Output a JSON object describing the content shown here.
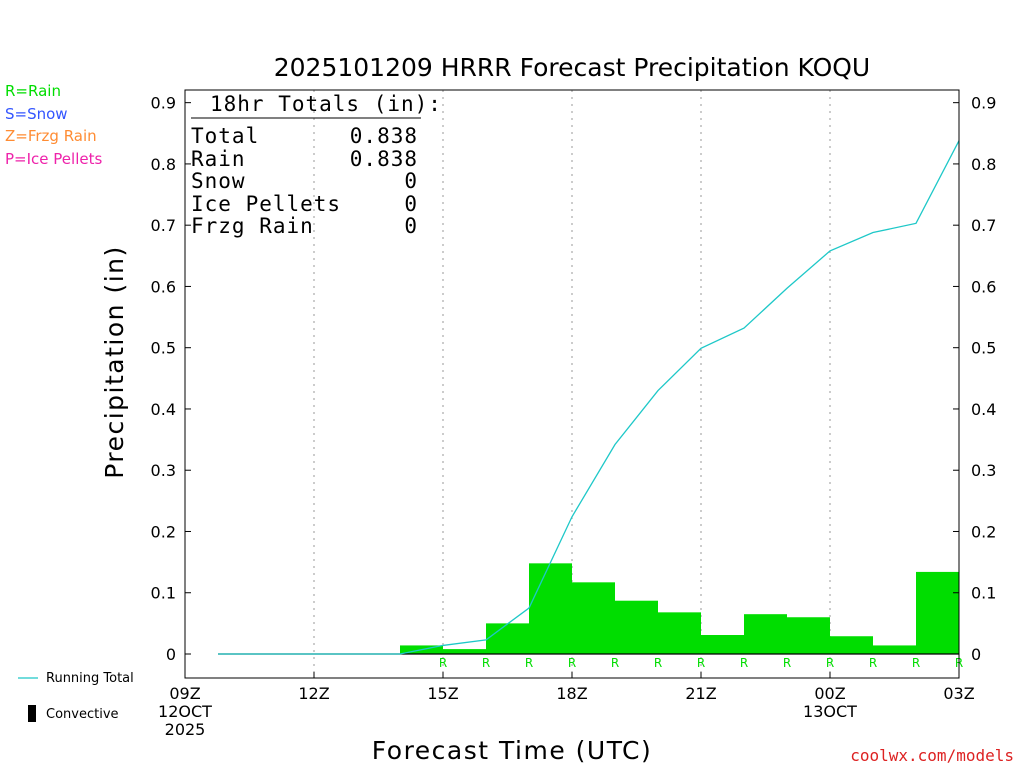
{
  "title": "2025101209 HRRR Forecast Precipitation KOQU",
  "legend_types": [
    {
      "label": "R=Rain",
      "color": "#00dd00"
    },
    {
      "label": "S=Snow",
      "color": "#3355ff"
    },
    {
      "label": "Z=Frzg Rain",
      "color": "#ff8c33"
    },
    {
      "label": "P=Ice Pellets",
      "color": "#ee22aa"
    }
  ],
  "totals": {
    "header": "18hr Totals (in):",
    "rows": [
      {
        "label": "Total",
        "value": "0.838"
      },
      {
        "label": "Rain",
        "value": "0.838"
      },
      {
        "label": "Snow",
        "value": "0"
      },
      {
        "label": "Ice Pellets",
        "value": "0"
      },
      {
        "label": "Frzg Rain",
        "value": "0"
      }
    ]
  },
  "bottom_legend": {
    "running_total": "Running Total",
    "convective": "Convective"
  },
  "credit": "coolwx.com/models",
  "colors": {
    "bars": "#00dd00",
    "line": "#1ec8c8",
    "rain_marker": "#00dd00",
    "credit": "#dd2222"
  },
  "chart_data": {
    "type": "bar",
    "title": "2025101209 HRRR Forecast Precipitation KOQU",
    "xlabel": "Forecast Time (UTC)",
    "ylabel": "Precipitation (in)",
    "ylim": [
      0,
      0.92
    ],
    "yticks": [
      0,
      0.1,
      0.2,
      0.3,
      0.4,
      0.5,
      0.6,
      0.7,
      0.8,
      0.9
    ],
    "ytick_labels": [
      "0",
      "0.1",
      "0.2",
      "0.3",
      "0.4",
      "0.5",
      "0.6",
      "0.7",
      "0.8",
      "0.9"
    ],
    "xlim": [
      0,
      18
    ],
    "xticks": [
      {
        "hour": 0,
        "lines": [
          "09Z",
          "12OCT",
          "2025"
        ]
      },
      {
        "hour": 3,
        "lines": [
          "12Z"
        ]
      },
      {
        "hour": 6,
        "lines": [
          "15Z"
        ]
      },
      {
        "hour": 9,
        "lines": [
          "18Z"
        ]
      },
      {
        "hour": 12,
        "lines": [
          "21Z"
        ]
      },
      {
        "hour": 15,
        "lines": [
          "00Z",
          "13OCT"
        ]
      },
      {
        "hour": 18,
        "lines": [
          "03Z"
        ]
      }
    ],
    "grid_hours": [
      3,
      6,
      9,
      12,
      15
    ],
    "hourly_bars": [
      {
        "hour": 1,
        "value": 0
      },
      {
        "hour": 2,
        "value": 0
      },
      {
        "hour": 3,
        "value": 0
      },
      {
        "hour": 4,
        "value": 0
      },
      {
        "hour": 5,
        "value": 0
      },
      {
        "hour": 6,
        "value": 0.014
      },
      {
        "hour": 7,
        "value": 0.008
      },
      {
        "hour": 8,
        "value": 0.05
      },
      {
        "hour": 9,
        "value": 0.148
      },
      {
        "hour": 10,
        "value": 0.117
      },
      {
        "hour": 11,
        "value": 0.087
      },
      {
        "hour": 12,
        "value": 0.068
      },
      {
        "hour": 13,
        "value": 0.031
      },
      {
        "hour": 14,
        "value": 0.065
      },
      {
        "hour": 15,
        "value": 0.06
      },
      {
        "hour": 16,
        "value": 0.029
      },
      {
        "hour": 17,
        "value": 0.014
      },
      {
        "hour": 18,
        "value": 0.134
      }
    ],
    "running_total": [
      {
        "hour": 1,
        "value": 0
      },
      {
        "hour": 2,
        "value": 0
      },
      {
        "hour": 3,
        "value": 0
      },
      {
        "hour": 4,
        "value": 0
      },
      {
        "hour": 5,
        "value": 0
      },
      {
        "hour": 6,
        "value": 0.014
      },
      {
        "hour": 7,
        "value": 0.023
      },
      {
        "hour": 8,
        "value": 0.075
      },
      {
        "hour": 9,
        "value": 0.224
      },
      {
        "hour": 10,
        "value": 0.342
      },
      {
        "hour": 11,
        "value": 0.43
      },
      {
        "hour": 12,
        "value": 0.499
      },
      {
        "hour": 13,
        "value": 0.532
      },
      {
        "hour": 14,
        "value": 0.597
      },
      {
        "hour": 15,
        "value": 0.658
      },
      {
        "hour": 16,
        "value": 0.688
      },
      {
        "hour": 17,
        "value": 0.703
      },
      {
        "hour": 18,
        "value": 0.838
      }
    ],
    "precip_types": [
      {
        "hour": 6,
        "type": "R"
      },
      {
        "hour": 7,
        "type": "R"
      },
      {
        "hour": 8,
        "type": "R"
      },
      {
        "hour": 9,
        "type": "R"
      },
      {
        "hour": 10,
        "type": "R"
      },
      {
        "hour": 11,
        "type": "R"
      },
      {
        "hour": 12,
        "type": "R"
      },
      {
        "hour": 13,
        "type": "R"
      },
      {
        "hour": 14,
        "type": "R"
      },
      {
        "hour": 15,
        "type": "R"
      },
      {
        "hour": 16,
        "type": "R"
      },
      {
        "hour": 17,
        "type": "R"
      },
      {
        "hour": 18,
        "type": "R"
      }
    ]
  }
}
